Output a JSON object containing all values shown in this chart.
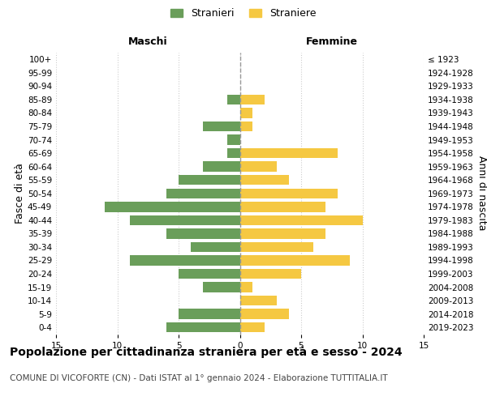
{
  "age_groups": [
    "100+",
    "95-99",
    "90-94",
    "85-89",
    "80-84",
    "75-79",
    "70-74",
    "65-69",
    "60-64",
    "55-59",
    "50-54",
    "45-49",
    "40-44",
    "35-39",
    "30-34",
    "25-29",
    "20-24",
    "15-19",
    "10-14",
    "5-9",
    "0-4"
  ],
  "birth_years": [
    "≤ 1923",
    "1924-1928",
    "1929-1933",
    "1934-1938",
    "1939-1943",
    "1944-1948",
    "1949-1953",
    "1954-1958",
    "1959-1963",
    "1964-1968",
    "1969-1973",
    "1974-1978",
    "1979-1983",
    "1984-1988",
    "1989-1993",
    "1994-1998",
    "1999-2003",
    "2004-2008",
    "2009-2013",
    "2014-2018",
    "2019-2023"
  ],
  "males": [
    0,
    0,
    0,
    1,
    0,
    3,
    1,
    1,
    3,
    5,
    6,
    11,
    9,
    6,
    4,
    9,
    5,
    3,
    0,
    5,
    6
  ],
  "females": [
    0,
    0,
    0,
    2,
    1,
    1,
    0,
    8,
    3,
    4,
    8,
    7,
    10,
    7,
    6,
    9,
    5,
    1,
    3,
    4,
    2
  ],
  "male_color": "#6a9e5a",
  "female_color": "#f5c842",
  "xlim": 15,
  "xlabel_left": "Maschi",
  "xlabel_right": "Femmine",
  "ylabel_left": "Fasce di età",
  "ylabel_right": "Anni di nascita",
  "legend_male": "Stranieri",
  "legend_female": "Straniere",
  "title": "Popolazione per cittadinanza straniera per età e sesso - 2024",
  "subtitle": "COMUNE DI VICOFORTE (CN) - Dati ISTAT al 1° gennaio 2024 - Elaborazione TUTTITALIA.IT",
  "title_fontsize": 10,
  "subtitle_fontsize": 7.5,
  "axis_tick_fontsize": 7.5,
  "label_fontsize": 9,
  "background_color": "#ffffff",
  "grid_color": "#cccccc",
  "dashed_line_color": "#999999"
}
